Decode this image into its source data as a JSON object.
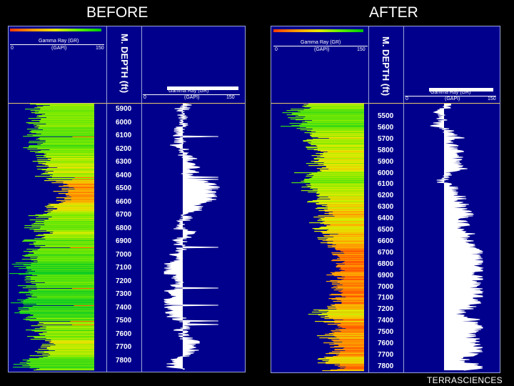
{
  "titles": {
    "before": "BEFORE",
    "after": "AFTER"
  },
  "track_header": {
    "curve_name": "Gamma Ray (GR)",
    "unit": "(GAPI)",
    "scale_min": "0",
    "scale_max": "150",
    "depth_title": "M. DEPTH (ft)"
  },
  "before": {
    "depths": [
      "5900",
      "6000",
      "6100",
      "6200",
      "6300",
      "6400",
      "6500",
      "6600",
      "6700",
      "6800",
      "6900",
      "7000",
      "7100",
      "7200",
      "7300",
      "7400",
      "7500",
      "7600",
      "7700",
      "7800"
    ]
  },
  "after": {
    "depths": [
      "5500",
      "5600",
      "5700",
      "5800",
      "5900",
      "6000",
      "6100",
      "6200",
      "6300",
      "6400",
      "6500",
      "6600",
      "6700",
      "6800",
      "6900",
      "7000",
      "7100",
      "7200",
      "7400",
      "7500",
      "7600",
      "7700",
      "7800"
    ]
  },
  "colors": {
    "track_bg": "#00008c",
    "border": "#9aa4d8",
    "header_line": "#e8c86a"
  },
  "brand": "TERRASCIENCES"
}
